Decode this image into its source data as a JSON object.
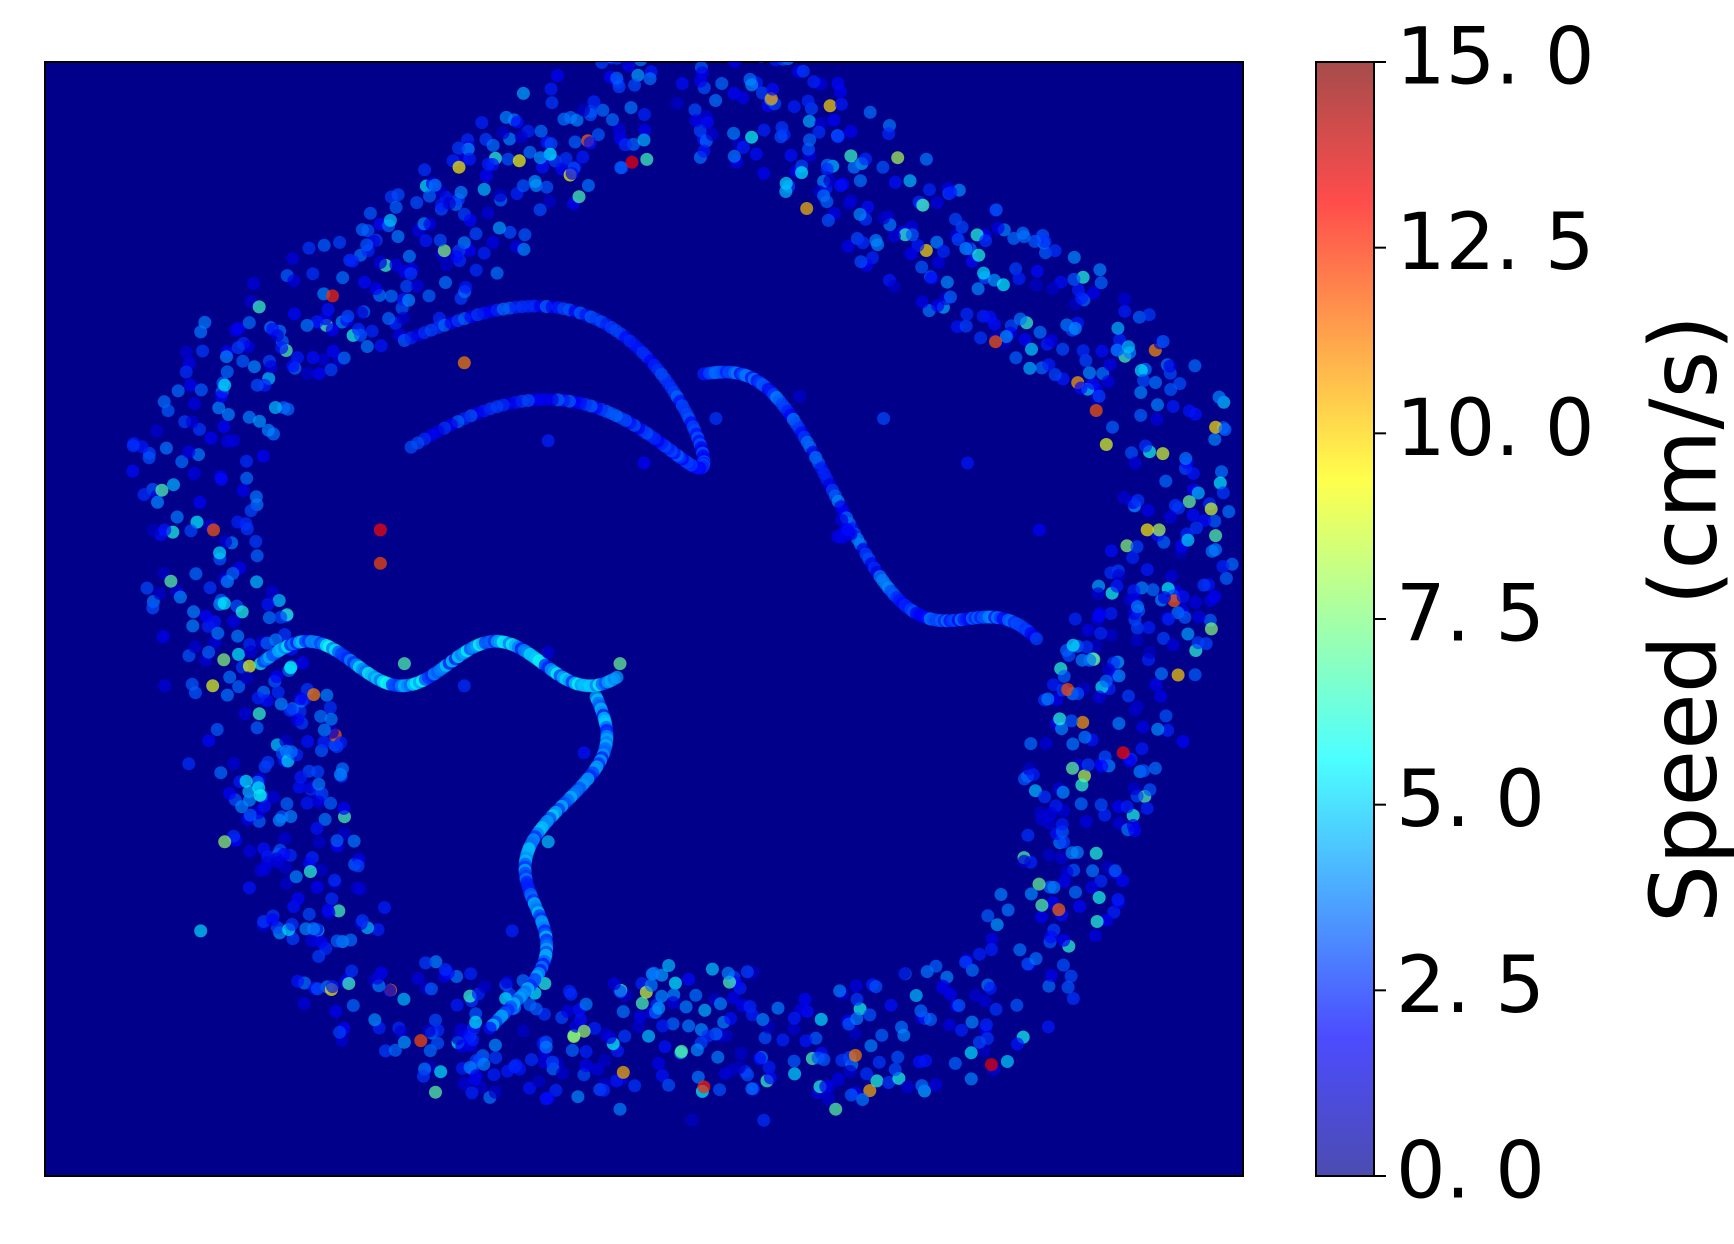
{
  "chart_data": {
    "type": "scatter",
    "title": "",
    "xlabel": "",
    "ylabel": "",
    "axes_ticks_visible": false,
    "plot_background": "#00008b",
    "marker_alpha": 0.7,
    "colormap": "jet",
    "colorbar": {
      "label": "Speed (cm/s)",
      "vmin": 0.0,
      "vmax": 15.0,
      "ticks": [
        0.0,
        2.5,
        5.0,
        7.5,
        10.0,
        12.5,
        15.0
      ],
      "tick_labels": [
        "0. 0",
        "2. 5",
        "5. 0",
        "7. 5",
        "10. 0",
        "12. 5",
        "15. 0"
      ]
    },
    "series": [
      {
        "values_note": "animal trajectory positions colored by speed; approximated sample",
        "points": [
          {
            "x": 0.28,
            "y": 0.82,
            "s": 1.5
          },
          {
            "x": 0.33,
            "y": 0.84,
            "s": 3.0
          },
          {
            "x": 0.38,
            "y": 0.88,
            "s": 1.2
          },
          {
            "x": 0.44,
            "y": 0.9,
            "s": 2.0
          },
          {
            "x": 0.5,
            "y": 0.93,
            "s": 4.5
          },
          {
            "x": 0.55,
            "y": 0.92,
            "s": 2.2
          },
          {
            "x": 0.6,
            "y": 0.9,
            "s": 1.8
          },
          {
            "x": 0.65,
            "y": 0.88,
            "s": 3.5
          },
          {
            "x": 0.7,
            "y": 0.86,
            "s": 1.0
          },
          {
            "x": 0.75,
            "y": 0.83,
            "s": 2.5
          },
          {
            "x": 0.8,
            "y": 0.8,
            "s": 5.5
          },
          {
            "x": 0.84,
            "y": 0.75,
            "s": 1.6
          },
          {
            "x": 0.88,
            "y": 0.7,
            "s": 2.8
          },
          {
            "x": 0.91,
            "y": 0.64,
            "s": 1.4
          },
          {
            "x": 0.93,
            "y": 0.58,
            "s": 8.2
          },
          {
            "x": 0.95,
            "y": 0.52,
            "s": 2.1
          },
          {
            "x": 0.96,
            "y": 0.45,
            "s": 3.3
          },
          {
            "x": 0.95,
            "y": 0.39,
            "s": 1.9
          },
          {
            "x": 0.92,
            "y": 0.33,
            "s": 2.4
          },
          {
            "x": 0.88,
            "y": 0.25,
            "s": 6.0
          },
          {
            "x": 0.84,
            "y": 0.18,
            "s": 1.7
          },
          {
            "x": 0.78,
            "y": 0.12,
            "s": 2.9
          },
          {
            "x": 0.72,
            "y": 0.08,
            "s": 1.3
          },
          {
            "x": 0.66,
            "y": 0.06,
            "s": 7.0
          },
          {
            "x": 0.6,
            "y": 0.05,
            "s": 2.6
          },
          {
            "x": 0.54,
            "y": 0.05,
            "s": 1.1
          },
          {
            "x": 0.48,
            "y": 0.06,
            "s": 3.8
          },
          {
            "x": 0.42,
            "y": 0.07,
            "s": 2.0
          },
          {
            "x": 0.36,
            "y": 0.09,
            "s": 1.5
          },
          {
            "x": 0.3,
            "y": 0.12,
            "s": 4.2
          },
          {
            "x": 0.24,
            "y": 0.17,
            "s": 2.3
          },
          {
            "x": 0.19,
            "y": 0.23,
            "s": 1.8
          },
          {
            "x": 0.15,
            "y": 0.3,
            "s": 7.8
          },
          {
            "x": 0.12,
            "y": 0.37,
            "s": 2.6
          },
          {
            "x": 0.1,
            "y": 0.44,
            "s": 1.4
          },
          {
            "x": 0.09,
            "y": 0.51,
            "s": 3.1
          },
          {
            "x": 0.1,
            "y": 0.58,
            "s": 2.2
          },
          {
            "x": 0.12,
            "y": 0.65,
            "s": 1.6
          },
          {
            "x": 0.15,
            "y": 0.71,
            "s": 5.2
          },
          {
            "x": 0.19,
            "y": 0.76,
            "s": 2.0
          },
          {
            "x": 0.24,
            "y": 0.79,
            "s": 12.5
          },
          {
            "x": 0.35,
            "y": 0.73,
            "s": 11.2
          },
          {
            "x": 0.42,
            "y": 0.66,
            "s": 2.4
          },
          {
            "x": 0.5,
            "y": 0.64,
            "s": 1.9
          },
          {
            "x": 0.56,
            "y": 0.68,
            "s": 2.7
          },
          {
            "x": 0.63,
            "y": 0.7,
            "s": 1.2
          },
          {
            "x": 0.7,
            "y": 0.68,
            "s": 3.0
          },
          {
            "x": 0.77,
            "y": 0.64,
            "s": 2.2
          },
          {
            "x": 0.83,
            "y": 0.58,
            "s": 1.8
          },
          {
            "x": 0.86,
            "y": 0.5,
            "s": 2.5
          },
          {
            "x": 0.88,
            "y": 0.43,
            "s": 1.4
          },
          {
            "x": 0.9,
            "y": 0.38,
            "s": 13.0
          },
          {
            "x": 0.92,
            "y": 0.58,
            "s": 9.6
          },
          {
            "x": 0.67,
            "y": 0.58,
            "s": 2.0
          },
          {
            "x": 0.3,
            "y": 0.46,
            "s": 6.8
          },
          {
            "x": 0.35,
            "y": 0.44,
            "s": 2.6
          },
          {
            "x": 0.42,
            "y": 0.47,
            "s": 1.3
          },
          {
            "x": 0.48,
            "y": 0.46,
            "s": 7.2
          },
          {
            "x": 0.45,
            "y": 0.38,
            "s": 2.1
          },
          {
            "x": 0.42,
            "y": 0.3,
            "s": 4.8
          },
          {
            "x": 0.39,
            "y": 0.22,
            "s": 2.4
          },
          {
            "x": 0.41,
            "y": 0.15,
            "s": 3.3
          },
          {
            "x": 0.45,
            "y": 0.13,
            "s": 7.9
          },
          {
            "x": 0.14,
            "y": 0.44,
            "s": 9.0
          },
          {
            "x": 0.13,
            "y": 0.22,
            "s": 5.1
          },
          {
            "x": 0.28,
            "y": 0.58,
            "s": 13.0
          },
          {
            "x": 0.28,
            "y": 0.55,
            "s": 12.0
          },
          {
            "x": 0.79,
            "y": 0.1,
            "s": 13.4
          },
          {
            "x": 0.55,
            "y": 0.08,
            "s": 12.6
          },
          {
            "x": 0.49,
            "y": 0.91,
            "s": 13.2
          }
        ]
      }
    ]
  }
}
